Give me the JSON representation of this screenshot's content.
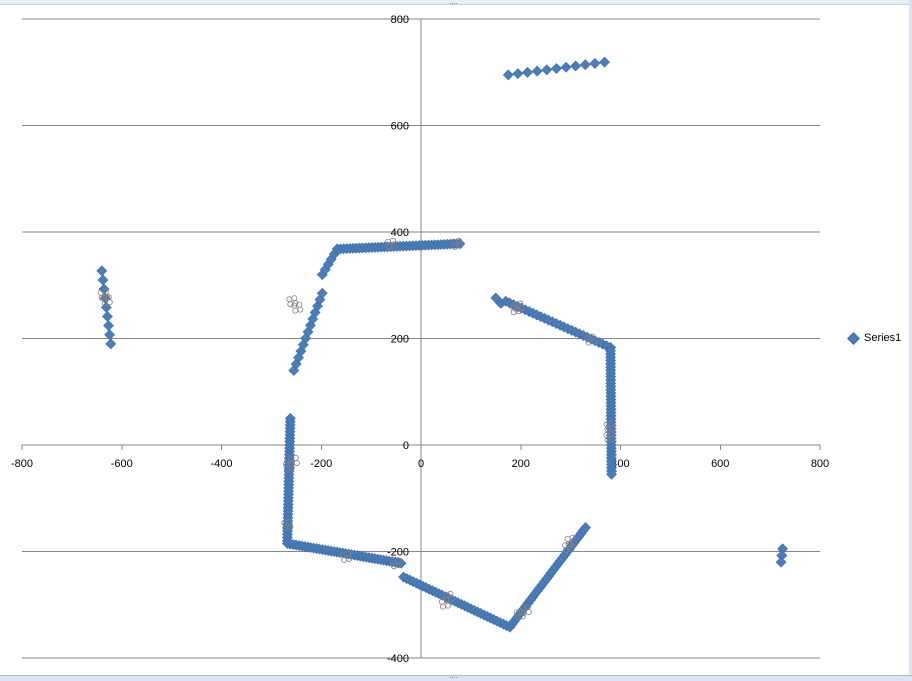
{
  "chart_data": {
    "type": "scatter",
    "title": "",
    "xlabel": "",
    "ylabel": "",
    "xlim": [
      -800,
      800
    ],
    "ylim": [
      -400,
      800
    ],
    "x_ticks": [
      -800,
      -600,
      -400,
      -200,
      0,
      200,
      400,
      600,
      800
    ],
    "y_ticks": [
      -400,
      -200,
      0,
      200,
      400,
      600,
      800
    ],
    "x_tick_labels": [
      "-800",
      "-600",
      "-400",
      "-200",
      "0",
      "200",
      "400",
      "600",
      "800"
    ],
    "y_tick_labels": [
      "-400",
      "-200",
      "0",
      "200",
      "400",
      "600",
      "800"
    ],
    "grid": "horizontal major gridlines",
    "legend_placement": "right",
    "marker": "diamond",
    "colors": {
      "series": "#4a7ebb",
      "grid": "#868686",
      "axis": "#868686",
      "ring": "#808080"
    },
    "series": [
      {
        "name": "Series1",
        "segments": [
          [
            [
              -640,
              327
            ],
            [
              -622,
              190
            ]
          ],
          [
            [
              175,
              695
            ],
            [
              368,
              719
            ]
          ],
          [
            [
              -255,
              140
            ],
            [
              -198,
              285
            ]
          ],
          [
            [
              -198,
              320
            ],
            [
              -168,
              368
            ]
          ],
          [
            [
              -168,
              368
            ],
            [
              78,
              378
            ]
          ],
          [
            [
              150,
              276
            ],
            [
              160,
              266
            ]
          ],
          [
            [
              170,
              270
            ],
            [
              380,
              183
            ]
          ],
          [
            [
              380,
              183
            ],
            [
              382,
              -55
            ]
          ],
          [
            [
              -262,
              50
            ],
            [
              -268,
              -180
            ]
          ],
          [
            [
              -268,
              -185
            ],
            [
              -40,
              -222
            ]
          ],
          [
            [
              -35,
              -248
            ],
            [
              178,
              -342
            ]
          ],
          [
            [
              178,
              -342
            ],
            [
              330,
              -155
            ]
          ],
          [
            [
              725,
              -195
            ],
            [
              722,
              -220
            ]
          ]
        ],
        "segment_point_counts": [
          9,
          11,
          13,
          6,
          40,
          2,
          28,
          40,
          38,
          40,
          34,
          34,
          3
        ],
        "ring_clusters": [
          [
            -636,
            282
          ],
          [
            -630,
            272
          ],
          [
            -258,
            270
          ],
          [
            -248,
            258
          ],
          [
            -60,
            378
          ],
          [
            72,
            378
          ],
          [
            195,
            260
          ],
          [
            190,
            255
          ],
          [
            340,
            198
          ],
          [
            378,
            35
          ],
          [
            378,
            15
          ],
          [
            -268,
            -150
          ],
          [
            -265,
            -40
          ],
          [
            -255,
            -30
          ],
          [
            -150,
            -210
          ],
          [
            -50,
            -222
          ],
          [
            55,
            -285
          ],
          [
            48,
            -298
          ],
          [
            210,
            -310
          ],
          [
            198,
            -318
          ],
          [
            300,
            -180
          ],
          [
            295,
            -192
          ]
        ]
      }
    ]
  },
  "legend": {
    "label": "Series1"
  },
  "window": {
    "grip_top": "....",
    "grip_bottom": "...."
  }
}
